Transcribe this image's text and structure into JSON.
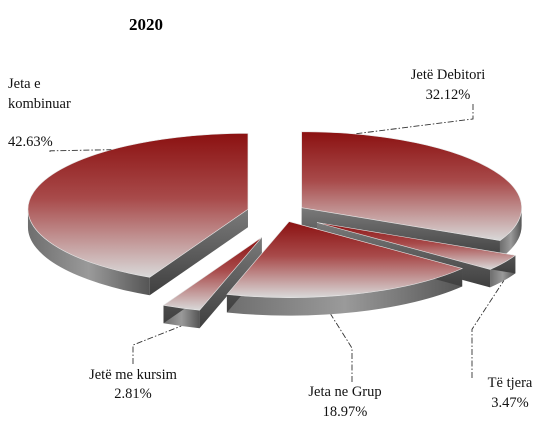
{
  "chart_data": {
    "type": "pie",
    "style": "3d-exploded",
    "title": "2020",
    "slices": [
      {
        "name": "Jetë Debitori",
        "value": 32.12,
        "label": "32.12%",
        "color_dark": "#8b1111",
        "color_light": "#d9d9d9"
      },
      {
        "name": "Të tjera",
        "value": 3.47,
        "label": "3.47%",
        "color_dark": "#8b1111",
        "color_light": "#d9d9d9"
      },
      {
        "name": "Jeta ne Grup",
        "value": 18.97,
        "label": "18.97%",
        "color_dark": "#8b1111",
        "color_light": "#d9d9d9"
      },
      {
        "name": "Jetë me kursim",
        "value": 2.81,
        "label": "2.81%",
        "color_dark": "#8b1111",
        "color_light": "#d9d9d9"
      },
      {
        "name": "Jeta e kombinuar",
        "value": 42.63,
        "label": "42.63%",
        "color_dark": "#8b1111",
        "color_light": "#d9d9d9"
      }
    ]
  }
}
